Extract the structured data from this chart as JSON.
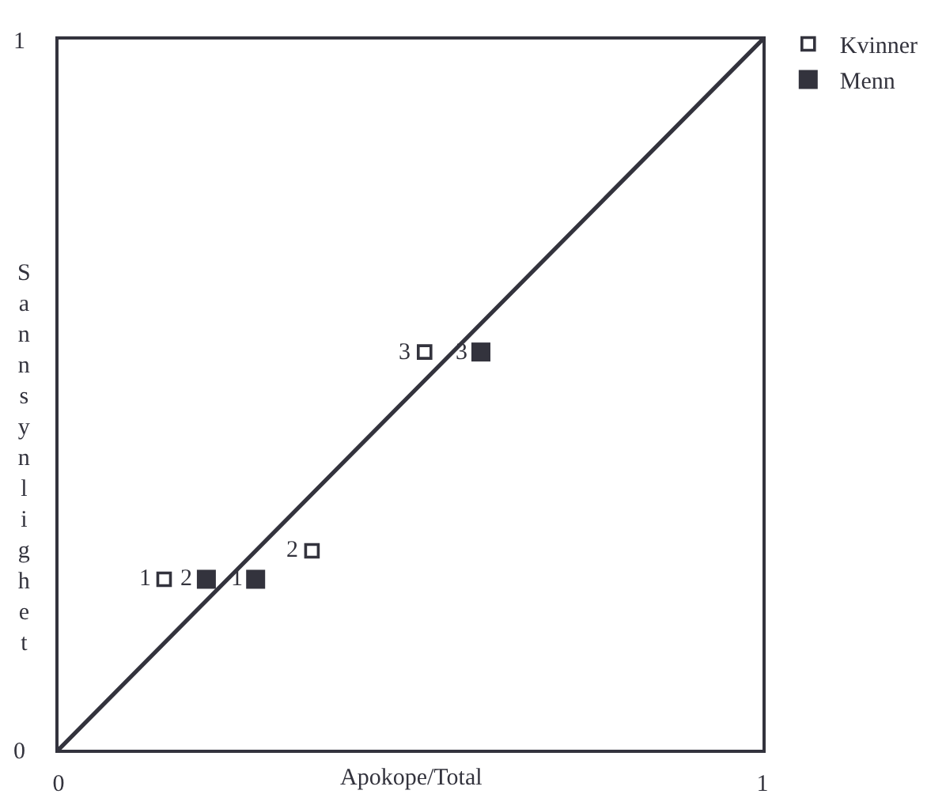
{
  "chart_data": {
    "type": "scatter",
    "xlabel": "Apokope/Total",
    "ylabel": "Sannsynlighet",
    "xlim": [
      0,
      1
    ],
    "ylim": [
      0,
      1
    ],
    "xticks": [
      0,
      1
    ],
    "yticks": [
      0,
      1
    ],
    "legend": "top right",
    "series": [
      {
        "name": "Kvinner",
        "color": "#33333d",
        "marker": "square-open",
        "x": [
          0.15,
          0.36,
          0.52
        ],
        "values": [
          0.24,
          0.28,
          0.56
        ]
      },
      {
        "name": "Menn",
        "color": "#33333d",
        "marker": "square",
        "x": [
          0.28,
          0.21,
          0.6
        ],
        "values": [
          0.24,
          0.24,
          0.56
        ]
      },
      {
        "type": "line",
        "color": "#33333d",
        "x": [
          0,
          1
        ],
        "values": [
          0,
          1
        ]
      }
    ],
    "annotations": [
      {
        "text": "1",
        "x": 0.15,
        "y": 0.24
      },
      {
        "text": "2",
        "x": 0.36,
        "y": 0.28
      },
      {
        "text": "3",
        "x": 0.52,
        "y": 0.56
      },
      {
        "text": "1",
        "x": 0.28,
        "y": 0.24
      },
      {
        "text": "2",
        "x": 0.21,
        "y": 0.24
      },
      {
        "text": "3",
        "x": 0.6,
        "y": 0.56
      }
    ]
  }
}
